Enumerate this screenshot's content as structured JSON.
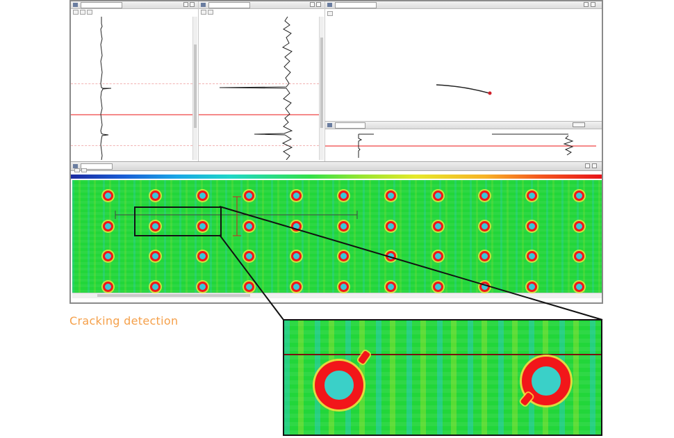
{
  "caption": "Cracking detection",
  "colors": {
    "caption": "#f5a04a",
    "scan_background": "#22d63a",
    "defect_ring": "#f2161a",
    "hole_center": "#39c6d8",
    "reference_line": "#f58a8a"
  },
  "cscan": {
    "hole_grid": {
      "rows": 4,
      "columns": 11
    }
  }
}
